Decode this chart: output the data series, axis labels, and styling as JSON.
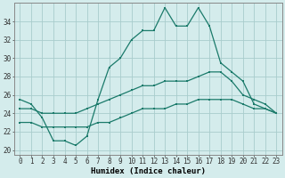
{
  "xlabel": "Humidex (Indice chaleur)",
  "bg_color": "#d4ecec",
  "grid_color": "#a8cccc",
  "line_color": "#1a7a6a",
  "x_values": [
    0,
    1,
    2,
    3,
    4,
    5,
    6,
    7,
    8,
    9,
    10,
    11,
    12,
    13,
    14,
    15,
    16,
    17,
    18,
    19,
    20,
    21,
    22,
    23
  ],
  "line1": [
    25.5,
    25.0,
    23.5,
    21.0,
    21.0,
    20.5,
    21.5,
    25.5,
    29.0,
    30.0,
    32.0,
    33.0,
    33.0,
    35.5,
    33.5,
    33.5,
    35.5,
    33.5,
    29.5,
    28.5,
    27.5,
    25.0,
    24.5,
    24.0
  ],
  "line2": [
    24.5,
    24.5,
    24.0,
    24.0,
    24.0,
    24.0,
    24.5,
    25.0,
    25.5,
    26.0,
    26.5,
    27.0,
    27.0,
    27.5,
    27.5,
    27.5,
    28.0,
    28.5,
    28.5,
    27.5,
    26.0,
    25.5,
    25.0,
    24.0
  ],
  "line3": [
    23.0,
    23.0,
    22.5,
    22.5,
    22.5,
    22.5,
    22.5,
    23.0,
    23.0,
    23.5,
    24.0,
    24.5,
    24.5,
    24.5,
    25.0,
    25.0,
    25.5,
    25.5,
    25.5,
    25.5,
    25.0,
    24.5,
    24.5,
    24.0
  ],
  "ylim": [
    19.5,
    36.0
  ],
  "xlim": [
    -0.5,
    23.5
  ],
  "yticks": [
    20,
    22,
    24,
    26,
    28,
    30,
    32,
    34
  ],
  "xticks": [
    0,
    1,
    2,
    3,
    4,
    5,
    6,
    7,
    8,
    9,
    10,
    11,
    12,
    13,
    14,
    15,
    16,
    17,
    18,
    19,
    20,
    21,
    22,
    23
  ],
  "tick_fontsize": 5.5,
  "xlabel_fontsize": 6.5
}
